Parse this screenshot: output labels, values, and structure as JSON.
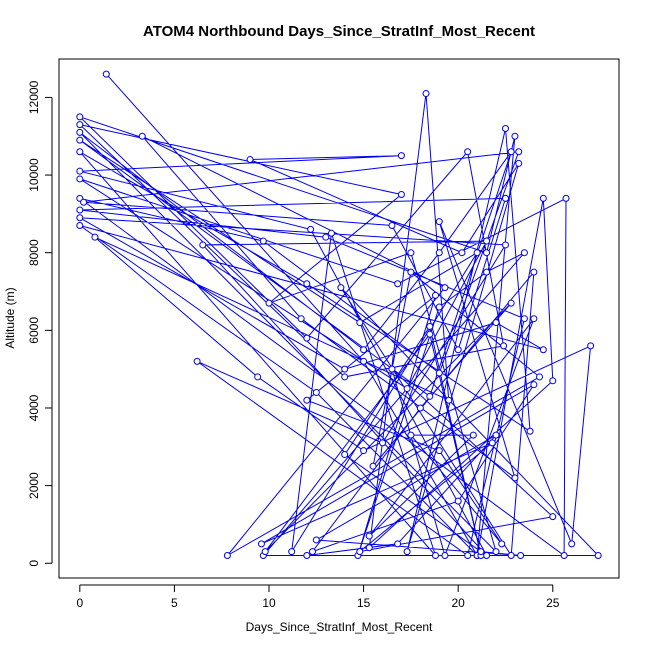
{
  "chart_data": {
    "type": "line",
    "title": "ATOM4 Northbound Days_Since_StratInf_Most_Recent",
    "xlabel": "Days_Since_StratInf_Most_Recent",
    "ylabel": "Altitude (m)",
    "xlim": [
      -1.1,
      28.5
    ],
    "ylim": [
      -380,
      12990
    ],
    "xticks": [
      0,
      5,
      10,
      15,
      20,
      25
    ],
    "yticks": [
      0,
      2000,
      4000,
      6000,
      8000,
      10000,
      12000
    ],
    "grid": false,
    "line_color": "#0000ee",
    "series": [
      {
        "values": [
          [
            1.4,
            12600
          ],
          [
            15.0,
            5200
          ],
          [
            21.0,
            200
          ],
          [
            23.0,
            11000
          ],
          [
            21.5,
            8000
          ],
          [
            0.0,
            11500
          ],
          [
            12.0,
            5800
          ],
          [
            20.5,
            10600
          ],
          [
            22.4,
            5600
          ],
          [
            14.0,
            4800
          ],
          [
            0.0,
            11300
          ],
          [
            17.0,
            9500
          ],
          [
            10.0,
            6700
          ],
          [
            17.5,
            8000
          ],
          [
            22.0,
            300
          ],
          [
            0.0,
            11100
          ],
          [
            15.0,
            5500
          ],
          [
            19.0,
            8000
          ],
          [
            22.8,
            10600
          ],
          [
            18.5,
            4300
          ],
          [
            0.0,
            10900
          ],
          [
            14.8,
            6200
          ],
          [
            21.0,
            8000
          ],
          [
            11.2,
            300
          ],
          [
            13.3,
            8500
          ],
          [
            18.8,
            200
          ],
          [
            0.0,
            10600
          ],
          [
            12.0,
            7200
          ],
          [
            23.8,
            3400
          ],
          [
            22.5,
            11200
          ],
          [
            17.3,
            300
          ],
          [
            23.2,
            10300
          ],
          [
            20.2,
            8000
          ],
          [
            9.0,
            10400
          ],
          [
            17.0,
            10500
          ],
          [
            0.0,
            10100
          ],
          [
            12.2,
            8600
          ],
          [
            21.5,
            200
          ],
          [
            6.5,
            8200
          ],
          [
            21.5,
            8300
          ],
          [
            17.3,
            4500
          ],
          [
            0.0,
            9900
          ],
          [
            16.8,
            7200
          ],
          [
            25.7,
            9400
          ],
          [
            25.6,
            200
          ],
          [
            0.0,
            9400
          ],
          [
            9.7,
            8300
          ],
          [
            19.0,
            4900
          ],
          [
            23.2,
            10600
          ],
          [
            0.2,
            9300
          ],
          [
            16.5,
            8700
          ],
          [
            20.0,
            5500
          ],
          [
            22.5,
            9400
          ],
          [
            0.0,
            9100
          ],
          [
            13.0,
            8400
          ],
          [
            23.5,
            6300
          ],
          [
            20.5,
            200
          ],
          [
            6.2,
            5200
          ],
          [
            16.0,
            3100
          ],
          [
            22.5,
            8200
          ],
          [
            0.0,
            8900
          ],
          [
            14.0,
            5000
          ],
          [
            22.0,
            6200
          ],
          [
            24.5,
            5500
          ],
          [
            0.0,
            8700
          ],
          [
            12.5,
            4400
          ],
          [
            21.0,
            200
          ],
          [
            24.5,
            9400
          ],
          [
            25.0,
            4700
          ],
          [
            15.3,
            400
          ],
          [
            18.3,
            12100
          ],
          [
            19.5,
            4200
          ],
          [
            0.8,
            8400
          ],
          [
            9.4,
            4800
          ],
          [
            15.0,
            2900
          ],
          [
            27.0,
            5600
          ],
          [
            26.0,
            500
          ],
          [
            19.0,
            8800
          ],
          [
            23.0,
            2200
          ],
          [
            11.7,
            6300
          ],
          [
            3.3,
            11000
          ],
          [
            19.3,
            7100
          ],
          [
            7.8,
            200
          ],
          [
            24.3,
            4800
          ],
          [
            17.5,
            7500
          ],
          [
            15.5,
            2500
          ],
          [
            24.0,
            7500
          ],
          [
            22.8,
            200
          ],
          [
            13.8,
            7100
          ],
          [
            27.4,
            200
          ],
          [
            9.7,
            200
          ],
          [
            23.5,
            8000
          ],
          [
            21.5,
            7500
          ],
          [
            19.0,
            6600
          ],
          [
            14.7,
            200
          ],
          [
            18.8,
            6900
          ],
          [
            12.0,
            4200
          ],
          [
            19.0,
            2900
          ],
          [
            22.3,
            500
          ],
          [
            17.5,
            3300
          ],
          [
            20.8,
            3300
          ],
          [
            15.3,
            700
          ],
          [
            24.0,
            6300
          ],
          [
            19.3,
            200
          ],
          [
            16.5,
            5000
          ],
          [
            25.0,
            1200
          ],
          [
            14.8,
            300
          ],
          [
            21.8,
            3100
          ],
          [
            9.6,
            500
          ],
          [
            24.0,
            4600
          ],
          [
            20.0,
            1600
          ],
          [
            12.3,
            300
          ],
          [
            18.0,
            4000
          ],
          [
            22.8,
            6700
          ],
          [
            9.8,
            300
          ],
          [
            18.5,
            5900
          ],
          [
            21.2,
            200
          ],
          [
            18.5,
            6100
          ],
          [
            14.0,
            2800
          ],
          [
            21.2,
            300
          ],
          [
            23.3,
            200
          ],
          [
            12.5,
            600
          ],
          [
            22.0,
            3300
          ],
          [
            16.8,
            500
          ],
          [
            12.0,
            200
          ]
        ]
      }
    ]
  }
}
